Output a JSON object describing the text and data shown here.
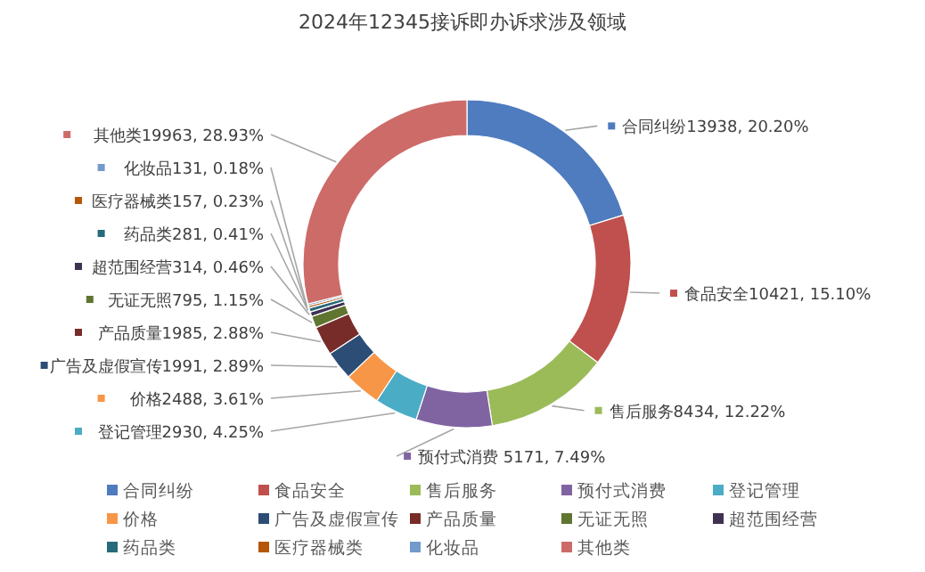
{
  "chart_data": {
    "type": "donut",
    "title": "2024年12345接诉即办诉求涉及领域",
    "categories": [
      "合同纠纷",
      "食品安全",
      "售后服务",
      "预付式消费",
      "登记管理",
      "价格",
      "广告及虚假宣传",
      "产品质量",
      "无证无照",
      "超范围经营",
      "药品类",
      "医疗器械类",
      "化妆品",
      "其他类"
    ],
    "values": [
      13938,
      10421,
      8434,
      5171,
      2930,
      2488,
      1991,
      1985,
      795,
      314,
      281,
      157,
      131,
      19963
    ],
    "value_labels": [
      "合同纠纷13938, 20.20%",
      "食品安全10421, 15.10%",
      "售后服务8434, 12.22%",
      "预付式消费 5171, 7.49%",
      "登记管理2930, 4.25%",
      "价格2488, 3.61%",
      "广告及虚假宣传1991, 2.89%",
      "产品质量1985, 2.88%",
      "无证无照795, 1.15%",
      "超范围经营314, 0.46%",
      "药品类281, 0.41%",
      "医疗器械类157, 0.23%",
      "化妆品131, 0.18%",
      "其他类19963, 28.93%"
    ],
    "colors": [
      "#4f7bbf",
      "#c0504d",
      "#9bbb59",
      "#8064a2",
      "#4bacc6",
      "#f79646",
      "#2c4d75",
      "#772c2a",
      "#5f7530",
      "#3f3151",
      "#276a7c",
      "#b65708",
      "#729aca",
      "#cd6b69"
    ],
    "legend": "bottom"
  }
}
